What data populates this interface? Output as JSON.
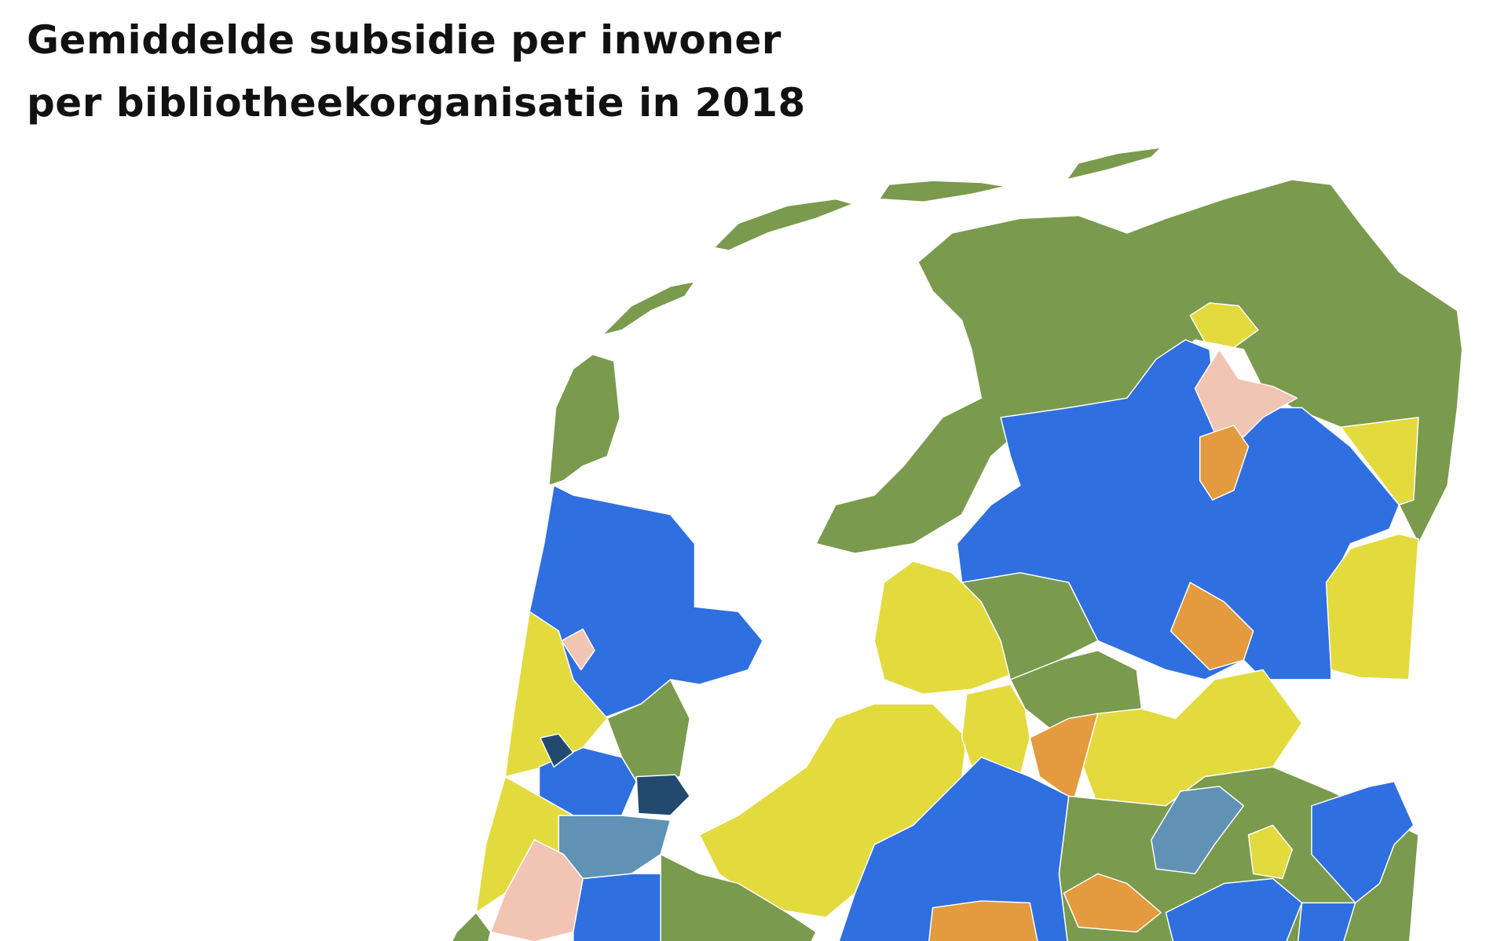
{
  "title": [
    "Gemiddelde subsidie per inwoner",
    "per bibliotheekorganisatie in 2018"
  ]
}
